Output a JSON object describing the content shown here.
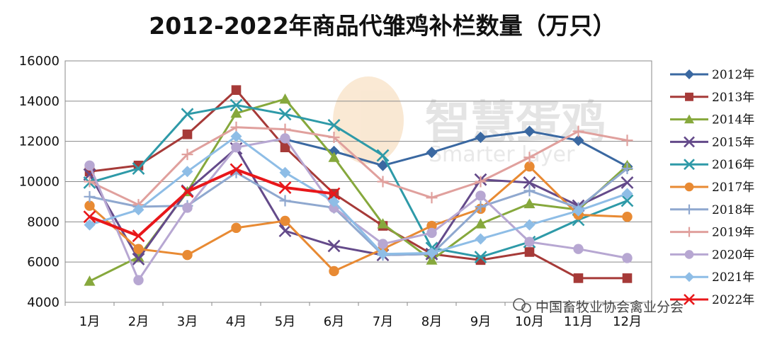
{
  "colors": {
    "2012年": "#3a68a1",
    "2013年": "#a63a38",
    "2014年": "#86a83c",
    "2015年": "#644a8a",
    "2016年": "#2e9aa8",
    "2017年": "#e88a33",
    "2018年": "#8fa8cf",
    "2019年": "#e0a09d",
    "2020年": "#b7a7d2",
    "2021年": "#8ebde6",
    "2022年": "#e8171a"
  },
  "watermark": {
    "brand": "智慧蛋鸡",
    "brand_en": "Smarter layer",
    "source": "中国畜牧业协会禽业分会"
  },
  "chart_data": {
    "type": "line",
    "title": "2012-2022年商品代雏鸡补栏数量（万只）",
    "xlabel": "",
    "ylabel": "",
    "categories": [
      "1月",
      "2月",
      "3月",
      "4月",
      "5月",
      "6月",
      "7月",
      "8月",
      "9月",
      "10月",
      "11月",
      "12月"
    ],
    "ylim": [
      4000,
      16000
    ],
    "yticks": [
      "4000",
      "6000",
      "8000",
      "10000",
      "12000",
      "14000",
      "16000"
    ],
    "grid": true,
    "legend": "right",
    "series": [
      {
        "name": "2012年",
        "marker": "diamond",
        "values": [
          null,
          null,
          null,
          null,
          12100,
          11500,
          10800,
          11450,
          12200,
          12500,
          12050,
          10750
        ]
      },
      {
        "name": "2013年",
        "marker": "square",
        "values": [
          10500,
          10800,
          12350,
          14550,
          11700,
          9400,
          7800,
          6400,
          6100,
          6500,
          5200,
          5200
        ]
      },
      {
        "name": "2014年",
        "marker": "triangle",
        "values": [
          5050,
          6250,
          9500,
          13400,
          14100,
          11200,
          7900,
          6100,
          7900,
          8900,
          8600,
          10800
        ]
      },
      {
        "name": "2015年",
        "marker": "x",
        "values": [
          10350,
          6150,
          9550,
          11650,
          7550,
          6800,
          6350,
          6400,
          10100,
          9950,
          8800,
          9950
        ]
      },
      {
        "name": "2016年",
        "marker": "x",
        "values": [
          9950,
          10650,
          13350,
          13800,
          13350,
          12800,
          11300,
          6700,
          6250,
          7000,
          8100,
          9050
        ]
      },
      {
        "name": "2017年",
        "marker": "circle",
        "values": [
          8800,
          6650,
          6350,
          7700,
          8050,
          5550,
          6650,
          7800,
          8650,
          10750,
          8350,
          8250
        ]
      },
      {
        "name": "2018年",
        "marker": "plus",
        "values": [
          9250,
          8750,
          8800,
          10450,
          9050,
          8700,
          6350,
          6400,
          8750,
          9550,
          8700,
          10650
        ]
      },
      {
        "name": "2019年",
        "marker": "plus",
        "values": [
          10000,
          8850,
          11350,
          12700,
          12600,
          12200,
          10000,
          9200,
          10000,
          11200,
          12500,
          12050
        ]
      },
      {
        "name": "2020年",
        "marker": "circle",
        "values": [
          10800,
          5100,
          8700,
          11700,
          12150,
          8700,
          6900,
          7450,
          9300,
          7000,
          6650,
          6200
        ]
      },
      {
        "name": "2021年",
        "marker": "diamond",
        "values": [
          7850,
          8600,
          10500,
          12250,
          10450,
          9000,
          6400,
          6450,
          7150,
          7850,
          8550,
          9400
        ]
      },
      {
        "name": "2022年",
        "marker": "x",
        "values": [
          8250,
          7300,
          9500,
          10600,
          9700,
          9400,
          null,
          null,
          null,
          null,
          null,
          null
        ]
      }
    ]
  }
}
